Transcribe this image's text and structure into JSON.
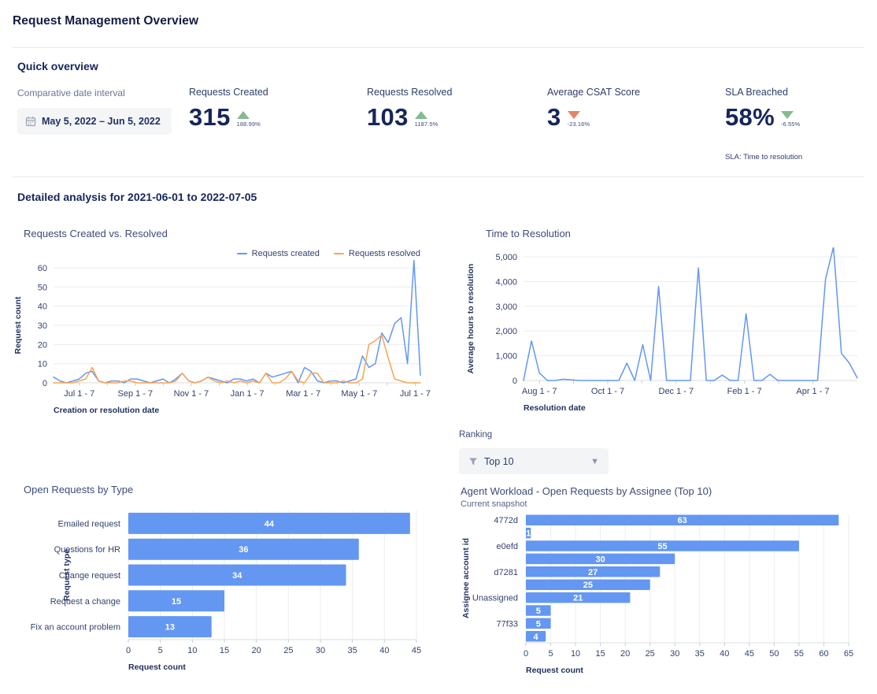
{
  "page": {
    "title": "Request Management Overview"
  },
  "quick_overview": {
    "heading": "Quick overview",
    "date_interval": {
      "label": "Comparative date interval",
      "value": "May 5, 2022 – Jun 5, 2022"
    },
    "stats": [
      {
        "label": "Requests Created",
        "value": "315",
        "delta": "188.99%",
        "direction": "up",
        "sentiment": "positive"
      },
      {
        "label": "Requests Resolved",
        "value": "103",
        "delta": "1187.5%",
        "direction": "up",
        "sentiment": "positive"
      },
      {
        "label": "Average CSAT Score",
        "value": "3",
        "delta": "-23.16%",
        "direction": "down",
        "sentiment": "negative"
      },
      {
        "label": "SLA Breached",
        "value": "58%",
        "delta": "-6.55%",
        "direction": "down",
        "sentiment": "positive",
        "note": "SLA: Time to resolution"
      }
    ]
  },
  "detailed": {
    "heading": "Detailed analysis for 2021-06-01 to 2022-07-05"
  },
  "ranking": {
    "label": "Ranking",
    "value": "Top 10"
  },
  "colors": {
    "accent_blue": "#6397f2",
    "accent_orange": "#f6a54f",
    "positive_green": "#85ba8e",
    "negative_red": "#e18568",
    "navy": "#16265a"
  },
  "chart_data": [
    {
      "type": "line",
      "title": "Requests Created vs. Resolved",
      "xlabel": "Creation or resolution date",
      "ylabel": "Request count",
      "ylim": [
        0,
        60
      ],
      "yticks": [
        0,
        10,
        20,
        30,
        40,
        50,
        60
      ],
      "grid": true,
      "legend_position": "top-right",
      "xtick_labels": [
        "Jul 1 - 7",
        "Sep 1 - 7",
        "Nov 1 - 7",
        "Jan 1 - 7",
        "Mar 1 - 7",
        "May 1 - 7",
        "Jul 1 - 7"
      ],
      "xtick_positions": [
        4,
        12.7,
        21.4,
        30.1,
        38.8,
        47.5,
        56.2
      ],
      "series": [
        {
          "name": "Requests created",
          "color": "#6397f2",
          "values": [
            3,
            1,
            0,
            1,
            2,
            5,
            6,
            1,
            0,
            1,
            1,
            0,
            2,
            2,
            1,
            0,
            1,
            2,
            0,
            2,
            5,
            1,
            0,
            1,
            3,
            2,
            1,
            0,
            2,
            2,
            1,
            2,
            0,
            5,
            3,
            4,
            5,
            6,
            0,
            8,
            6,
            1,
            0,
            1,
            1,
            0,
            1,
            2,
            14,
            8,
            10,
            26,
            21,
            31,
            34,
            10,
            64,
            4
          ]
        },
        {
          "name": "Requests resolved",
          "color": "#f6a54f",
          "values": [
            0,
            0,
            0,
            0,
            1,
            2,
            8,
            1,
            0,
            0,
            0,
            1,
            1,
            0,
            0,
            0,
            0,
            0,
            0,
            1,
            5,
            1,
            0,
            1,
            3,
            1,
            0,
            1,
            0,
            1,
            0,
            1,
            0,
            5,
            0,
            0,
            2,
            6,
            1,
            0,
            5,
            5,
            0,
            0,
            0,
            1,
            0,
            0,
            2,
            20,
            22,
            25,
            13,
            2,
            1,
            0,
            0,
            0
          ]
        }
      ]
    },
    {
      "type": "line",
      "title": "Time to Resolution",
      "xlabel": "Resolution date",
      "ylabel": "Average hours to resolution",
      "ylim": [
        0,
        5000
      ],
      "yticks": [
        0,
        1000,
        2000,
        3000,
        4000,
        5000
      ],
      "grid": true,
      "xtick_labels": [
        "Aug 1 - 7",
        "Oct 1 - 7",
        "Dec 1 - 7",
        "Feb 1 - 7",
        "Apr 1 - 7"
      ],
      "xtick_positions": [
        2,
        10.6,
        19.2,
        27.8,
        36.4
      ],
      "series": [
        {
          "name": "Average hours to resolution",
          "color": "#6397f2",
          "values": [
            0,
            1600,
            300,
            0,
            0,
            50,
            30,
            0,
            0,
            0,
            0,
            0,
            0,
            700,
            0,
            1450,
            0,
            3800,
            0,
            0,
            0,
            0,
            4550,
            0,
            0,
            220,
            0,
            0,
            2700,
            0,
            0,
            250,
            0,
            0,
            0,
            0,
            0,
            0,
            4100,
            5400,
            1100,
            700,
            100
          ]
        }
      ]
    },
    {
      "type": "hbar",
      "title": "Open Requests by Type",
      "xlabel": "Request count",
      "ylabel": "Request type",
      "categories": [
        "Emailed request",
        "Questions for HR",
        "Change request",
        "Request a change",
        "Fix an account problem"
      ],
      "values": [
        44,
        36,
        34,
        15,
        13
      ],
      "xlim": [
        0,
        45
      ],
      "xticks": [
        0,
        5,
        10,
        15,
        20,
        25,
        30,
        35,
        40,
        45
      ],
      "bar_color": "#6397f2",
      "value_labels": true
    },
    {
      "type": "hbar",
      "title": "Agent Workload - Open Requests by Assignee (Top 10)",
      "subtitle": "Current snapshot",
      "xlabel": "Request count",
      "ylabel": "Assignee account id",
      "categories": [
        "4772d",
        "",
        "e0efd",
        "",
        "d7281",
        "",
        "Unassigned",
        "",
        "77f33",
        ""
      ],
      "values": [
        63,
        1,
        55,
        30,
        27,
        25,
        21,
        5,
        5,
        4
      ],
      "xlim": [
        0,
        65
      ],
      "xticks": [
        0,
        5,
        10,
        15,
        20,
        25,
        30,
        35,
        40,
        45,
        50,
        55,
        60,
        65
      ],
      "bar_color": "#6397f2",
      "value_labels": true
    }
  ]
}
